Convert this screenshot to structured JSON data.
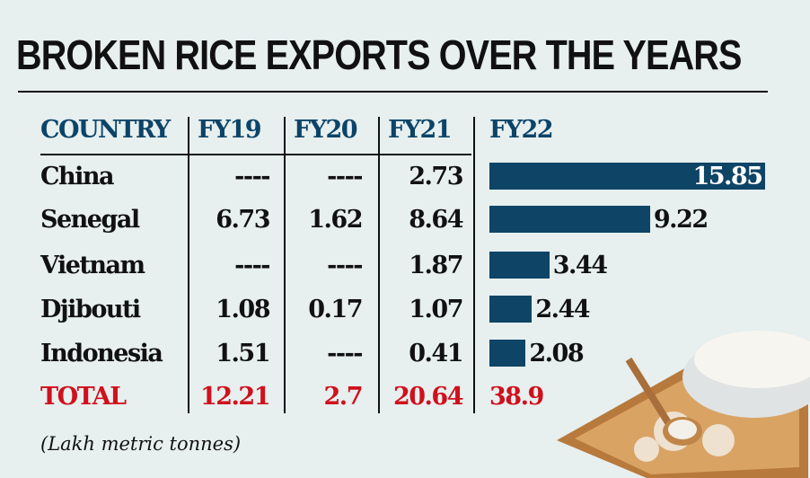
{
  "title": "BROKEN RICE EXPORTS OVER THE YEARS",
  "footnote": "(Lakh metric tonnes)",
  "chart_data": {
    "type": "table",
    "title": "BROKEN RICE EXPORTS OVER THE YEARS",
    "columns": [
      "COUNTRY",
      "FY19",
      "FY20",
      "FY21",
      "FY22"
    ],
    "rows": [
      {
        "country": "China",
        "FY19": "----",
        "FY20": "----",
        "FY21": "2.73",
        "FY22": 15.85
      },
      {
        "country": "Senegal",
        "FY19": "6.73",
        "FY20": "1.62",
        "FY21": "8.64",
        "FY22": 9.22
      },
      {
        "country": "Vietnam",
        "FY19": "----",
        "FY20": "----",
        "FY21": "1.87",
        "FY22": 3.44
      },
      {
        "country": "Djibouti",
        "FY19": "1.08",
        "FY20": "0.17",
        "FY21": "1.07",
        "FY22": 2.44
      },
      {
        "country": "Indonesia",
        "FY19": "1.51",
        "FY20": "----",
        "FY21": "0.41",
        "FY22": 2.08
      }
    ],
    "total": {
      "label": "TOTAL",
      "FY19": "12.21",
      "FY20": "2.7",
      "FY21": "20.64",
      "FY22": "38.9"
    },
    "bar_column": "FY22",
    "unit": "(Lakh metric tonnes)",
    "colors": {
      "header": "#0b4468",
      "bar": "#0e4466",
      "total": "#d0101c"
    }
  }
}
